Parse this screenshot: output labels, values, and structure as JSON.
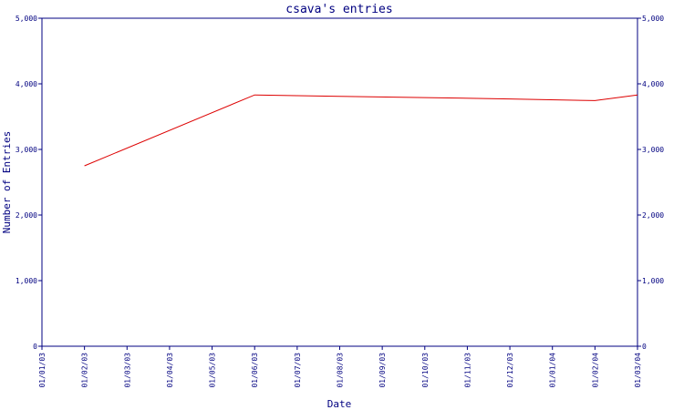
{
  "chart_data": {
    "type": "line",
    "title": "csava's entries",
    "xlabel": "Date",
    "ylabel": "Number of Entries",
    "x_categories": [
      "01/01/03",
      "01/02/03",
      "01/03/03",
      "01/04/03",
      "01/05/03",
      "01/06/03",
      "01/07/03",
      "01/08/03",
      "01/09/03",
      "01/10/03",
      "01/11/03",
      "01/12/03",
      "01/01/04",
      "01/02/04",
      "01/03/04"
    ],
    "y_ticks": [
      0,
      1000,
      2000,
      3000,
      4000,
      5000
    ],
    "y_tick_labels": [
      "0",
      "1,000",
      "2,000",
      "3,000",
      "4,000",
      "5,000"
    ],
    "ylim": [
      0,
      5000
    ],
    "grid": false,
    "colors": {
      "axis": "#000080",
      "series": "#dd0000"
    },
    "series": [
      {
        "points": [
          {
            "x": "01/02/03",
            "y": 2750
          },
          {
            "x": "01/06/03",
            "y": 3830
          },
          {
            "x": "01/08/03",
            "y": 3810
          },
          {
            "x": "01/10/03",
            "y": 3790
          },
          {
            "x": "01/12/03",
            "y": 3770
          },
          {
            "x": "01/02/04",
            "y": 3745
          },
          {
            "x": "01/03/04",
            "y": 3830
          }
        ]
      }
    ]
  }
}
